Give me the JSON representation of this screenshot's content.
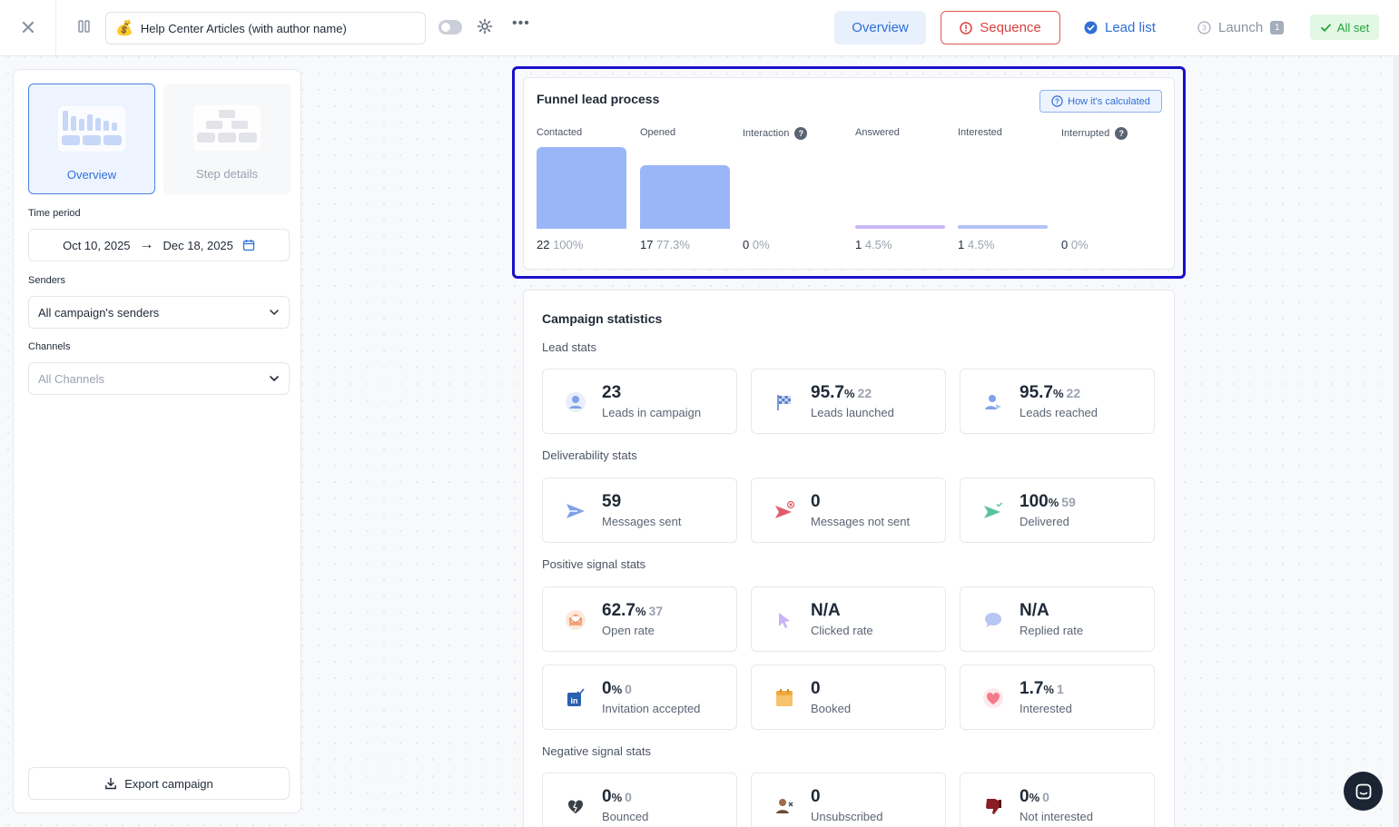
{
  "topbar": {
    "campaign_title": "Help Center Articles (with author name)",
    "tabs": {
      "overview": "Overview",
      "sequence": "Sequence",
      "lead_list": "Lead list",
      "launch": "Launch",
      "launch_badge": "1"
    },
    "status": "All set"
  },
  "sidebar": {
    "view_cards": [
      {
        "label": "Overview"
      },
      {
        "label": "Step details"
      }
    ],
    "time_period_label": "Time period",
    "date_from": "Oct 10, 2025",
    "date_to": "Dec 18, 2025",
    "senders_label": "Senders",
    "senders_value": "All campaign's senders",
    "channels_label": "Channels",
    "channels_placeholder": "All Channels",
    "export_label": "Export campaign"
  },
  "funnel": {
    "title": "Funnel lead process",
    "calc_button": "How it's calculated",
    "stages": [
      {
        "name": "Contacted",
        "count": "22",
        "pct": "100%",
        "fraction": 1.0,
        "color": "#9bb6f8",
        "help": false
      },
      {
        "name": "Opened",
        "count": "17",
        "pct": "77.3%",
        "fraction": 0.773,
        "color": "#9bb6f8",
        "help": false
      },
      {
        "name": "Interaction",
        "count": "0",
        "pct": "0%",
        "fraction": 0,
        "color": "#9bb6f8",
        "help": true
      },
      {
        "name": "Answered",
        "count": "1",
        "pct": "4.5%",
        "fraction": 0.045,
        "color": "#c9b8f5",
        "help": false
      },
      {
        "name": "Interested",
        "count": "1",
        "pct": "4.5%",
        "fraction": 0.045,
        "color": "#b3c2f6",
        "help": false
      },
      {
        "name": "Interrupted",
        "count": "0",
        "pct": "0%",
        "fraction": 0,
        "color": "#9bb6f8",
        "help": true
      }
    ]
  },
  "stats": {
    "title": "Campaign statistics",
    "sections": {
      "lead": "Lead stats",
      "deliverability": "Deliverability stats",
      "positive": "Positive signal stats",
      "negative": "Negative signal stats"
    },
    "lead": [
      {
        "value": "23",
        "unit": "",
        "sub": "",
        "label": "Leads in campaign",
        "icon": "user-icon"
      },
      {
        "value": "95.7",
        "unit": "%",
        "sub": "22",
        "label": "Leads launched",
        "icon": "flag-icon"
      },
      {
        "value": "95.7",
        "unit": "%",
        "sub": "22",
        "label": "Leads reached",
        "icon": "user-reached-icon"
      }
    ],
    "deliverability": [
      {
        "value": "59",
        "unit": "",
        "sub": "",
        "label": "Messages sent",
        "icon": "send-icon"
      },
      {
        "value": "0",
        "unit": "",
        "sub": "",
        "label": "Messages not sent",
        "icon": "send-failed-icon"
      },
      {
        "value": "100",
        "unit": "%",
        "sub": "59",
        "label": "Delivered",
        "icon": "send-delivered-icon"
      }
    ],
    "positive": [
      {
        "value": "62.7",
        "unit": "%",
        "sub": "37",
        "label": "Open rate",
        "icon": "open-mail-icon"
      },
      {
        "value": "N/A",
        "unit": "",
        "sub": "",
        "label": "Clicked rate",
        "icon": "cursor-icon"
      },
      {
        "value": "N/A",
        "unit": "",
        "sub": "",
        "label": "Replied rate",
        "icon": "chat-bubble-icon"
      },
      {
        "value": "0",
        "unit": "%",
        "sub": "0",
        "label": "Invitation accepted",
        "icon": "linkedin-icon"
      },
      {
        "value": "0",
        "unit": "",
        "sub": "",
        "label": "Booked",
        "icon": "calendar-icon"
      },
      {
        "value": "1.7",
        "unit": "%",
        "sub": "1",
        "label": "Interested",
        "icon": "heart-icon"
      }
    ],
    "negative": [
      {
        "value": "0",
        "unit": "%",
        "sub": "0",
        "label": "Bounced",
        "icon": "broken-heart-icon"
      },
      {
        "value": "0",
        "unit": "",
        "sub": "",
        "label": "Unsubscribed",
        "icon": "user-remove-icon"
      },
      {
        "value": "0",
        "unit": "%",
        "sub": "0",
        "label": "Not interested",
        "icon": "thumbs-down-icon"
      }
    ]
  }
}
